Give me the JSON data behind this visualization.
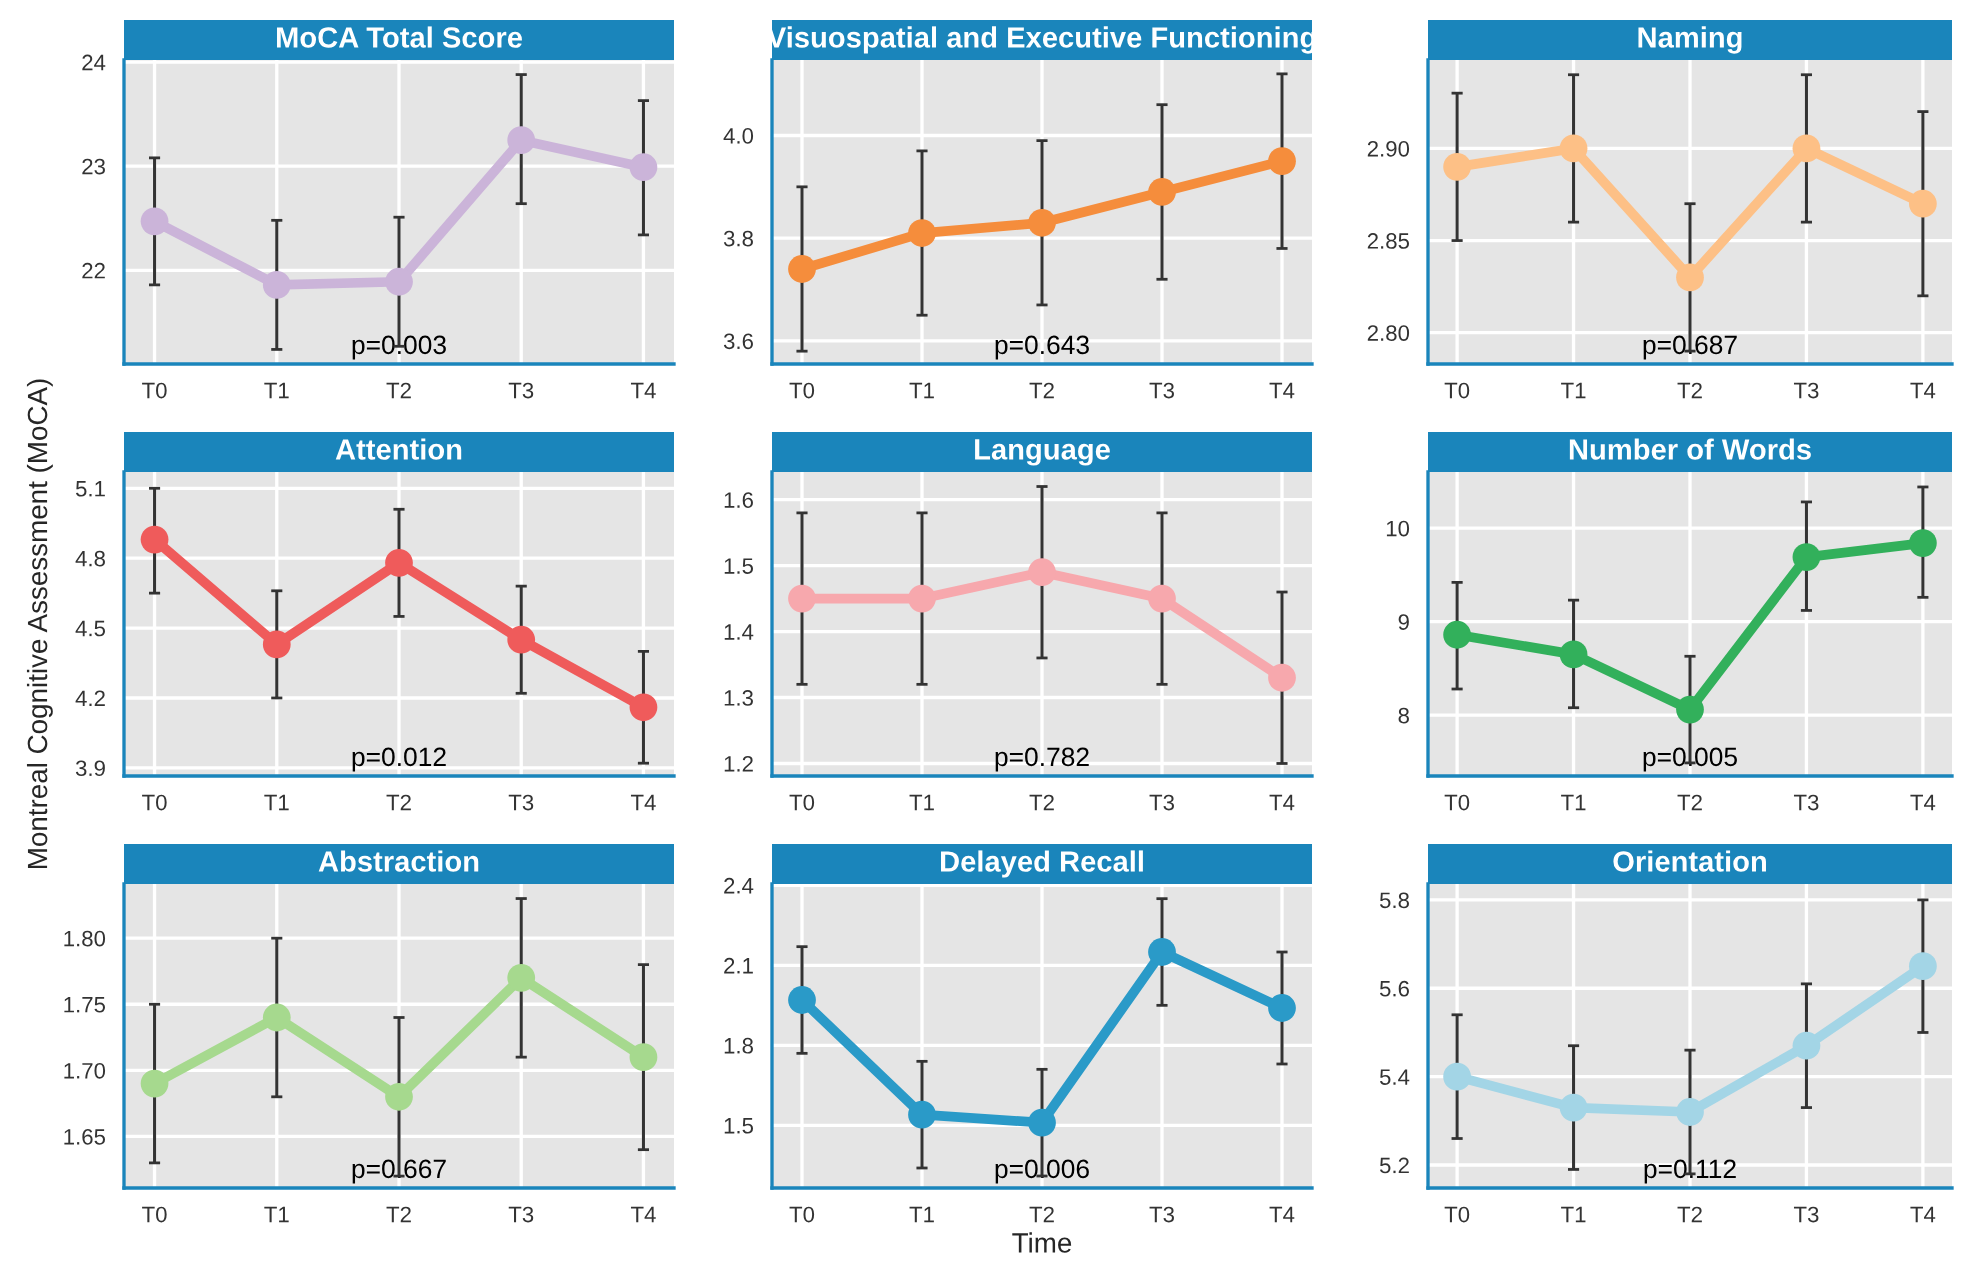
{
  "chart_data": [
    {
      "type": "line",
      "title": "MoCA Total Score",
      "categories": [
        "T0",
        "T1",
        "T2",
        "T3",
        "T4"
      ],
      "ylim": [
        21.1,
        24.02
      ],
      "yticks": [
        22,
        23,
        24
      ],
      "grid": true,
      "marker": "circle",
      "series": [
        {
          "color": "#cbb4d9",
          "values": [
            22.47,
            21.86,
            21.89,
            23.25,
            22.99
          ],
          "errors": [
            [
              21.86,
              23.08
            ],
            [
              21.24,
              22.48
            ],
            [
              21.27,
              22.51
            ],
            [
              22.64,
              23.88
            ],
            [
              22.34,
              23.63
            ]
          ]
        }
      ],
      "annotations": [
        "p=0.003"
      ]
    },
    {
      "type": "line",
      "title": "Visuospatial and Executive Functioning",
      "categories": [
        "T0",
        "T1",
        "T2",
        "T3",
        "T4"
      ],
      "ylim": [
        3.555,
        4.147
      ],
      "yticks": [
        {
          "value": 3.6,
          "label": "3.6"
        },
        {
          "value": 3.8,
          "label": "3.8"
        },
        {
          "value": 4.0,
          "label": "4.0"
        }
      ],
      "grid": true,
      "marker": "circle",
      "series": [
        {
          "color": "#f58d3c",
          "values": [
            3.74,
            3.81,
            3.83,
            3.89,
            3.95
          ],
          "errors": [
            [
              3.58,
              3.9
            ],
            [
              3.65,
              3.97
            ],
            [
              3.67,
              3.99
            ],
            [
              3.72,
              4.06
            ],
            [
              3.78,
              4.12
            ]
          ]
        }
      ],
      "annotations": [
        "p=0.643"
      ]
    },
    {
      "type": "line",
      "title": "Naming",
      "categories": [
        "T0",
        "T1",
        "T2",
        "T3",
        "T4"
      ],
      "ylim": [
        2.783,
        2.948
      ],
      "yticks": [
        {
          "value": 2.8,
          "label": "2.80"
        },
        {
          "value": 2.85,
          "label": "2.85"
        },
        {
          "value": 2.9,
          "label": "2.90"
        }
      ],
      "grid": true,
      "marker": "circle",
      "series": [
        {
          "color": "#fdc086",
          "values": [
            2.89,
            2.9,
            2.83,
            2.9,
            2.87
          ],
          "errors": [
            [
              2.85,
              2.93
            ],
            [
              2.86,
              2.94
            ],
            [
              2.79,
              2.87
            ],
            [
              2.86,
              2.94
            ],
            [
              2.82,
              2.92
            ]
          ]
        }
      ],
      "annotations": [
        "p=0.687"
      ]
    },
    {
      "type": "line",
      "title": "Attention",
      "ylabel": "Montreal Cognitive Assessment (MoCA)",
      "categories": [
        "T0",
        "T1",
        "T2",
        "T3",
        "T4"
      ],
      "ylim": [
        3.865,
        5.17
      ],
      "yticks": [
        3.9,
        4.2,
        4.5,
        4.8,
        5.1
      ],
      "grid": true,
      "marker": "circle",
      "series": [
        {
          "color": "#ef5b5b",
          "values": [
            4.88,
            4.43,
            4.78,
            4.45,
            4.16
          ],
          "errors": [
            [
              4.65,
              5.1
            ],
            [
              4.2,
              4.66
            ],
            [
              4.55,
              5.01
            ],
            [
              4.22,
              4.68
            ],
            [
              3.92,
              4.4
            ]
          ]
        }
      ],
      "annotations": [
        "p=0.012"
      ]
    },
    {
      "type": "line",
      "title": "Language",
      "categories": [
        "T0",
        "T1",
        "T2",
        "T3",
        "T4"
      ],
      "ylim": [
        1.181,
        1.642
      ],
      "yticks": [
        1.2,
        1.3,
        1.4,
        1.5,
        1.6
      ],
      "grid": true,
      "marker": "circle",
      "series": [
        {
          "color": "#f7a8ad",
          "values": [
            1.45,
            1.45,
            1.49,
            1.45,
            1.33
          ],
          "errors": [
            [
              1.32,
              1.58
            ],
            [
              1.32,
              1.58
            ],
            [
              1.36,
              1.62
            ],
            [
              1.32,
              1.58
            ],
            [
              1.2,
              1.46
            ]
          ]
        }
      ],
      "annotations": [
        "p=0.782"
      ]
    },
    {
      "type": "line",
      "title": "Number of Words",
      "categories": [
        "T0",
        "T1",
        "T2",
        "T3",
        "T4"
      ],
      "ylim": [
        7.35,
        10.6
      ],
      "yticks": [
        8,
        9,
        10
      ],
      "grid": true,
      "marker": "circle",
      "series": [
        {
          "color": "#32b05b",
          "values": [
            8.86,
            8.65,
            8.06,
            9.69,
            9.84
          ],
          "errors": [
            [
              8.28,
              9.42
            ],
            [
              8.08,
              9.23
            ],
            [
              7.49,
              8.63
            ],
            [
              9.12,
              10.28
            ],
            [
              9.26,
              10.44
            ]
          ]
        }
      ],
      "annotations": [
        "p=0.005"
      ]
    },
    {
      "type": "line",
      "title": "Abstraction",
      "categories": [
        "T0",
        "T1",
        "T2",
        "T3",
        "T4"
      ],
      "ylim": [
        1.611,
        1.841
      ],
      "yticks": [
        {
          "value": 1.65,
          "label": "1.65"
        },
        {
          "value": 1.7,
          "label": "1.70"
        },
        {
          "value": 1.75,
          "label": "1.75"
        },
        {
          "value": 1.8,
          "label": "1.80"
        }
      ],
      "grid": true,
      "marker": "circle",
      "series": [
        {
          "color": "#a6d98e",
          "values": [
            1.69,
            1.74,
            1.68,
            1.77,
            1.71
          ],
          "errors": [
            [
              1.63,
              1.75
            ],
            [
              1.68,
              1.8
            ],
            [
              1.62,
              1.74
            ],
            [
              1.71,
              1.83
            ],
            [
              1.64,
              1.78
            ]
          ]
        }
      ],
      "annotations": [
        "p=0.667"
      ]
    },
    {
      "type": "line",
      "title": "Delayed Recall",
      "xlabel": "Time",
      "categories": [
        "T0",
        "T1",
        "T2",
        "T3",
        "T4"
      ],
      "ylim": [
        1.265,
        2.405
      ],
      "yticks": [
        1.5,
        1.8,
        2.1,
        2.4
      ],
      "grid": true,
      "marker": "circle",
      "series": [
        {
          "color": "#2a9ac8",
          "values": [
            1.97,
            1.54,
            1.51,
            2.15,
            1.94
          ],
          "errors": [
            [
              1.77,
              2.17
            ],
            [
              1.34,
              1.74
            ],
            [
              1.31,
              1.71
            ],
            [
              1.95,
              2.35
            ],
            [
              1.73,
              2.15
            ]
          ]
        }
      ],
      "annotations": [
        "p=0.006"
      ]
    },
    {
      "type": "line",
      "title": "Orientation",
      "categories": [
        "T0",
        "T1",
        "T2",
        "T3",
        "T4"
      ],
      "ylim": [
        5.148,
        5.836
      ],
      "yticks": [
        5.2,
        5.4,
        5.6,
        5.8
      ],
      "grid": true,
      "marker": "circle",
      "series": [
        {
          "color": "#a3d5e6",
          "values": [
            5.4,
            5.33,
            5.32,
            5.47,
            5.65
          ],
          "errors": [
            [
              5.26,
              5.54
            ],
            [
              5.19,
              5.47
            ],
            [
              5.18,
              5.46
            ],
            [
              5.33,
              5.61
            ],
            [
              5.5,
              5.8
            ]
          ]
        }
      ],
      "annotations": [
        "p=0.112"
      ]
    }
  ]
}
